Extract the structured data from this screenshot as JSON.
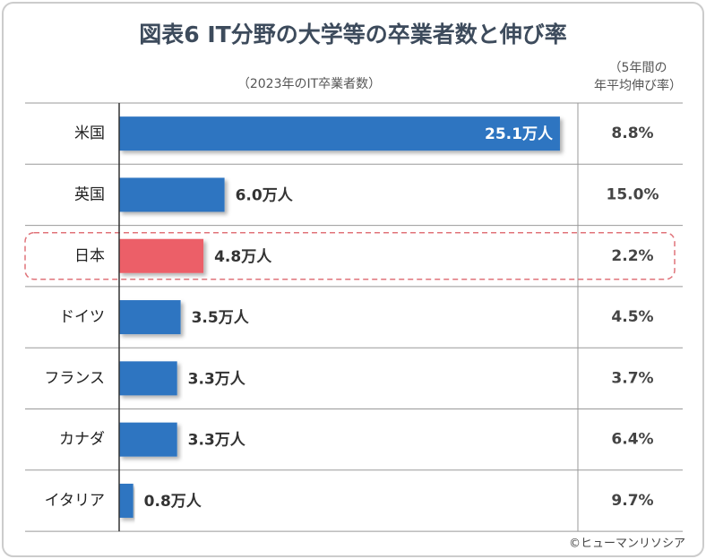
{
  "chart_data": {
    "type": "hbar",
    "title": "図表6 IT分野の大学等の卒業者数と伸び率",
    "subtitle": "（2023年のIT卒業者数）",
    "rate_header": [
      "（5年間の",
      "年平均伸び率）"
    ],
    "categories": [
      "米国",
      "英国",
      "日本",
      "ドイツ",
      "フランス",
      "カナダ",
      "イタリア"
    ],
    "values": [
      25.1,
      6.0,
      4.8,
      3.5,
      3.3,
      3.3,
      0.8
    ],
    "value_labels": [
      "25.1万人",
      "6.0万人",
      "4.8万人",
      "3.5万人",
      "3.3万人",
      "3.3万人",
      "0.8万人"
    ],
    "colors": [
      "#2e74c1",
      "#2e74c1",
      "#ec5f67",
      "#2e74c1",
      "#2e74c1",
      "#2e74c1",
      "#2e74c1"
    ],
    "rates": [
      8.8,
      15.0,
      2.2,
      4.5,
      3.7,
      6.4,
      9.7
    ],
    "rate_labels": [
      "8.8%",
      "15.0%",
      "2.2%",
      "4.5%",
      "3.7%",
      "6.4%",
      "9.7%"
    ],
    "credit": "©ヒューマンリソシア"
  }
}
